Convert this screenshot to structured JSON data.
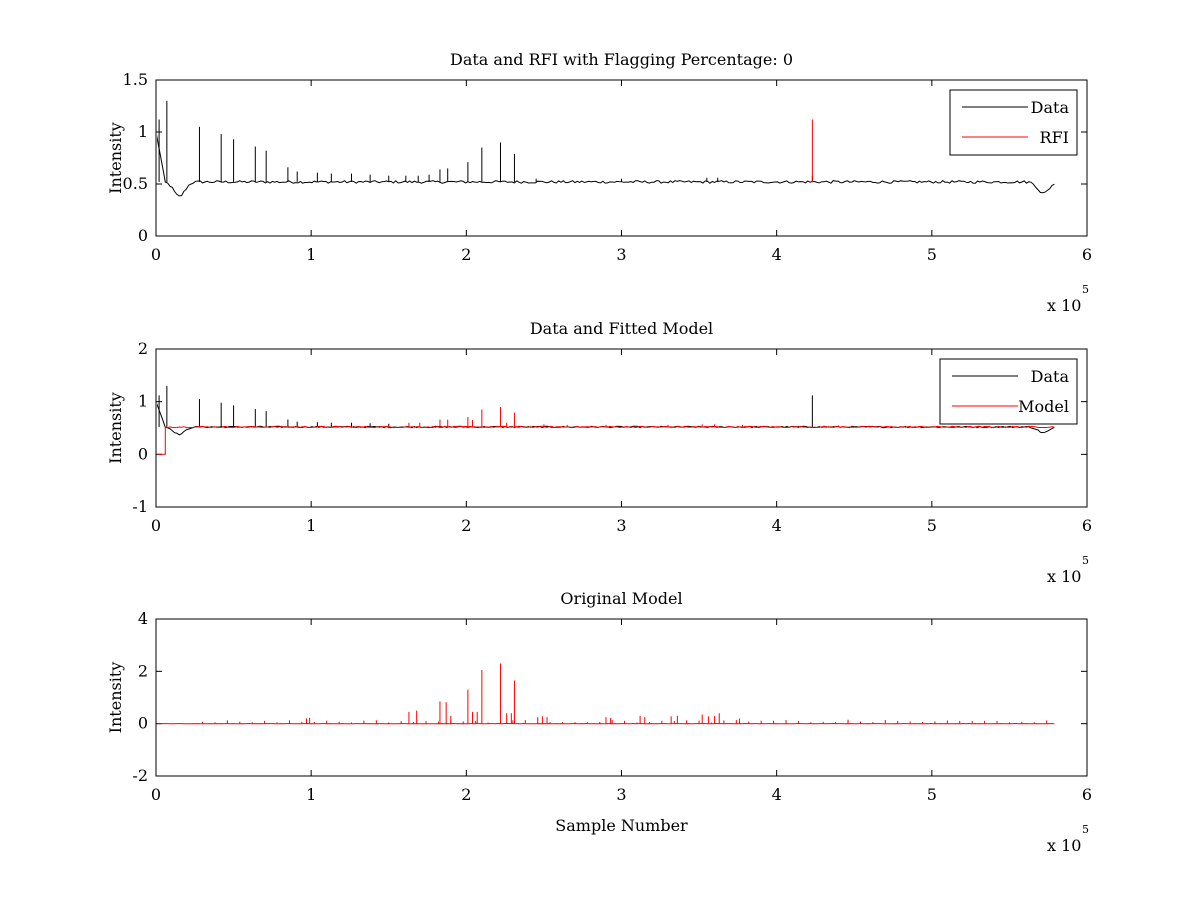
{
  "chart_data": [
    {
      "type": "line",
      "title": "Data and RFI with Flagging Percentage: 0",
      "xlabel": "",
      "ylabel": "Intensity",
      "xlim": [
        0,
        600000
      ],
      "ylim": [
        0,
        1.5
      ],
      "x_ticks": [
        0,
        1,
        2,
        3,
        4,
        5,
        6
      ],
      "y_ticks": [
        "0",
        "0.5",
        "1",
        "1.5"
      ],
      "x_exponent_label": "x 10",
      "x_exponent_power": "5",
      "legend_position": "top-right",
      "series": [
        {
          "name": "Data",
          "color": "#000000",
          "baseline": 0.52,
          "spikes": [
            [
              2000,
              1.12
            ],
            [
              7000,
              1.3
            ],
            [
              28000,
              1.05
            ],
            [
              42000,
              0.98
            ],
            [
              50000,
              0.93
            ],
            [
              64000,
              0.86
            ],
            [
              71000,
              0.82
            ],
            [
              85000,
              0.66
            ],
            [
              91000,
              0.62
            ],
            [
              104000,
              0.61
            ],
            [
              113000,
              0.6
            ],
            [
              126000,
              0.6
            ],
            [
              138000,
              0.59
            ],
            [
              150000,
              0.58
            ],
            [
              161000,
              0.58
            ],
            [
              169000,
              0.58
            ],
            [
              176000,
              0.59
            ],
            [
              183000,
              0.64
            ],
            [
              188000,
              0.65
            ],
            [
              201000,
              0.71
            ],
            [
              210000,
              0.85
            ],
            [
              222000,
              0.9
            ],
            [
              231000,
              0.79
            ],
            [
              245000,
              0.55
            ],
            [
              300000,
              0.55
            ],
            [
              355000,
              0.56
            ],
            [
              362000,
              0.56
            ],
            [
              423000,
              0.58
            ]
          ],
          "dips": [
            [
              15000,
              0.38
            ],
            [
              572000,
              0.41
            ]
          ]
        },
        {
          "name": "RFI",
          "color": "#ff0000",
          "spikes": [
            [
              423000,
              1.12
            ]
          ]
        }
      ]
    },
    {
      "type": "line",
      "title": "Data and Fitted Model",
      "xlabel": "",
      "ylabel": "Intensity",
      "xlim": [
        0,
        600000
      ],
      "ylim": [
        -1,
        2
      ],
      "x_ticks": [
        0,
        1,
        2,
        3,
        4,
        5,
        6
      ],
      "y_ticks": [
        "-1",
        "0",
        "1",
        "2"
      ],
      "x_exponent_label": "x 10",
      "x_exponent_power": "5",
      "legend_position": "top-right",
      "series": [
        {
          "name": "Data",
          "color": "#000000",
          "baseline": 0.52,
          "spikes": [
            [
              2000,
              1.12
            ],
            [
              7000,
              1.3
            ],
            [
              28000,
              1.05
            ],
            [
              42000,
              0.98
            ],
            [
              50000,
              0.93
            ],
            [
              64000,
              0.86
            ],
            [
              71000,
              0.82
            ],
            [
              85000,
              0.66
            ],
            [
              91000,
              0.62
            ],
            [
              104000,
              0.61
            ],
            [
              113000,
              0.6
            ],
            [
              126000,
              0.6
            ],
            [
              138000,
              0.59
            ],
            [
              150000,
              0.58
            ],
            [
              423000,
              1.12
            ]
          ],
          "dips": [
            [
              15000,
              0.38
            ],
            [
              572000,
              0.41
            ]
          ]
        },
        {
          "name": "Model",
          "color": "#ff0000",
          "baseline": 0.52,
          "start": 6000,
          "spikes": [
            [
              163000,
              0.6
            ],
            [
              170000,
              0.6
            ],
            [
              183000,
              0.66
            ],
            [
              188000,
              0.66
            ],
            [
              201000,
              0.71
            ],
            [
              204000,
              0.65
            ],
            [
              210000,
              0.85
            ],
            [
              222000,
              0.9
            ],
            [
              226000,
              0.6
            ],
            [
              231000,
              0.79
            ],
            [
              250000,
              0.57
            ],
            [
              265000,
              0.56
            ],
            [
              290000,
              0.56
            ],
            [
              330000,
              0.56
            ],
            [
              352000,
              0.57
            ],
            [
              360000,
              0.57
            ],
            [
              378000,
              0.56
            ],
            [
              440000,
              0.55
            ]
          ]
        }
      ]
    },
    {
      "type": "line",
      "title": "Original Model",
      "xlabel": "Sample Number",
      "ylabel": "Intensity",
      "xlim": [
        0,
        600000
      ],
      "ylim": [
        -2,
        4
      ],
      "x_ticks": [
        0,
        1,
        2,
        3,
        4,
        5,
        6
      ],
      "y_ticks": [
        "-2",
        "0",
        "2",
        "4"
      ],
      "x_exponent_label": "x 10",
      "x_exponent_power": "5",
      "legend_position": "none",
      "series": [
        {
          "color": "#ff0000",
          "baseline": 0,
          "x_end": 580000,
          "spikes": [
            [
              97000,
              0.2
            ],
            [
              99000,
              0.22
            ],
            [
              163000,
              0.45
            ],
            [
              168000,
              0.5
            ],
            [
              183000,
              0.85
            ],
            [
              187000,
              0.82
            ],
            [
              190000,
              0.3
            ],
            [
              201000,
              1.3
            ],
            [
              204000,
              0.45
            ],
            [
              207000,
              0.45
            ],
            [
              210000,
              2.05
            ],
            [
              222000,
              2.3
            ],
            [
              226000,
              0.4
            ],
            [
              229000,
              0.4
            ],
            [
              231000,
              1.65
            ],
            [
              246000,
              0.25
            ],
            [
              249000,
              0.28
            ],
            [
              252000,
              0.25
            ],
            [
              290000,
              0.25
            ],
            [
              293000,
              0.22
            ],
            [
              312000,
              0.3
            ],
            [
              315000,
              0.25
            ],
            [
              332000,
              0.28
            ],
            [
              336000,
              0.3
            ],
            [
              352000,
              0.35
            ],
            [
              356000,
              0.28
            ],
            [
              360000,
              0.3
            ],
            [
              363000,
              0.4
            ],
            [
              376000,
              0.2
            ],
            [
              446000,
              0.15
            ]
          ]
        }
      ]
    }
  ]
}
